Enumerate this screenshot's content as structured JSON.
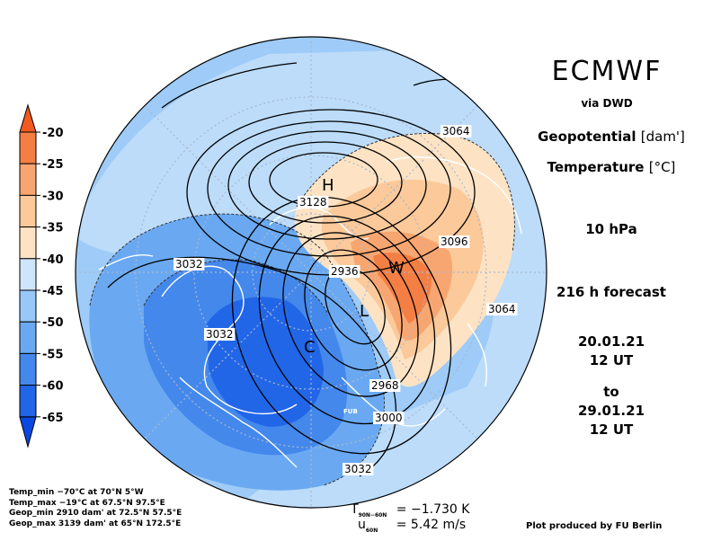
{
  "header": {
    "title": "ECMWF",
    "source": "via DWD"
  },
  "variables": {
    "line1_name": "Geopotential",
    "line1_unit": "[dam']",
    "line2_name": "Temperature",
    "line2_unit": "[°C]"
  },
  "forecast": {
    "level": "10 hPa",
    "lead": "216 h forecast",
    "init_date": "20.01.21",
    "init_time": "12 UT",
    "to_word": "to",
    "valid_date": "29.01.21",
    "valid_time": "12 UT"
  },
  "colorbar": {
    "labels": [
      "-20",
      "-25",
      "-30",
      "-35",
      "-40",
      "-45",
      "-50",
      "-55",
      "-60",
      "-65"
    ],
    "colors": [
      "#f05a1e",
      "#f47f45",
      "#f8a671",
      "#fbc99a",
      "#fde3c4",
      "#cfe5fb",
      "#97c8f7",
      "#6aa9f2",
      "#4488ec",
      "#2266e8",
      "#0a48e2"
    ]
  },
  "map_labels": {
    "high_marker": "H",
    "low_marker": "L",
    "warm_marker": "W",
    "cold_marker": "C",
    "contours": [
      "3064",
      "3128",
      "3096",
      "3032",
      "2936",
      "3064",
      "3032",
      "2968",
      "3000",
      "3032"
    ],
    "fub_mark": "FUB"
  },
  "stats": [
    "Temp_min  −70°C at 70°N 5°W",
    "Temp_max  −19°C at 67.5°N 97.5°E",
    "Geop_min  2910 dam' at 72.5°N 57.5°E",
    "Geop_max  3139 dam' at 65°N 172.5°E"
  ],
  "metrics": {
    "t_symbol": "T",
    "t_sub": "90N−60N",
    "t_value": "= −1.730 K",
    "u_symbol": "u",
    "u_sub": "60N",
    "u_value": "= 5.42 m/s"
  },
  "credit": "Plot produced by FU Berlin",
  "colors": {
    "land_outline": "#ffffff",
    "contour": "#000000",
    "background": "#ffffff"
  }
}
